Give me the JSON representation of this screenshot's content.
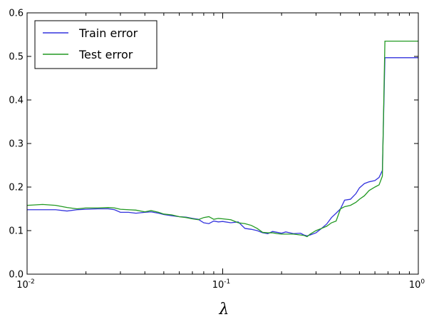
{
  "chart_data": {
    "type": "line",
    "title": "",
    "xlabel": "λ",
    "ylabel": "",
    "xscale": "log",
    "xlim": [
      0.01,
      1
    ],
    "ylim": [
      0,
      0.6
    ],
    "grid": false,
    "legend_position": "top-left",
    "x_ticks": [
      {
        "value": 0.01,
        "base": "10",
        "exp": "-2"
      },
      {
        "value": 0.1,
        "base": "10",
        "exp": "-1"
      },
      {
        "value": 1,
        "base": "10",
        "exp": "0"
      }
    ],
    "y_ticks": [
      {
        "value": 0.0,
        "label": "0.0"
      },
      {
        "value": 0.1,
        "label": "0.1"
      },
      {
        "value": 0.2,
        "label": "0.2"
      },
      {
        "value": 0.3,
        "label": "0.3"
      },
      {
        "value": 0.4,
        "label": "0.4"
      },
      {
        "value": 0.5,
        "label": "0.5"
      },
      {
        "value": 0.6,
        "label": "0.6"
      }
    ],
    "series": [
      {
        "name": "Train error",
        "color": "#3333dd",
        "points": [
          [
            0.01,
            0.148
          ],
          [
            0.012,
            0.148
          ],
          [
            0.014,
            0.148
          ],
          [
            0.016,
            0.145
          ],
          [
            0.018,
            0.148
          ],
          [
            0.02,
            0.149
          ],
          [
            0.023,
            0.15
          ],
          [
            0.026,
            0.15
          ],
          [
            0.028,
            0.148
          ],
          [
            0.03,
            0.142
          ],
          [
            0.033,
            0.142
          ],
          [
            0.036,
            0.14
          ],
          [
            0.04,
            0.142
          ],
          [
            0.043,
            0.143
          ],
          [
            0.047,
            0.14
          ],
          [
            0.05,
            0.137
          ],
          [
            0.055,
            0.134
          ],
          [
            0.06,
            0.132
          ],
          [
            0.065,
            0.131
          ],
          [
            0.07,
            0.128
          ],
          [
            0.075,
            0.126
          ],
          [
            0.08,
            0.118
          ],
          [
            0.085,
            0.116
          ],
          [
            0.09,
            0.122
          ],
          [
            0.095,
            0.12
          ],
          [
            0.1,
            0.121
          ],
          [
            0.11,
            0.118
          ],
          [
            0.12,
            0.12
          ],
          [
            0.13,
            0.105
          ],
          [
            0.14,
            0.103
          ],
          [
            0.15,
            0.1
          ],
          [
            0.16,
            0.095
          ],
          [
            0.17,
            0.093
          ],
          [
            0.18,
            0.098
          ],
          [
            0.19,
            0.096
          ],
          [
            0.2,
            0.094
          ],
          [
            0.21,
            0.097
          ],
          [
            0.22,
            0.095
          ],
          [
            0.23,
            0.093
          ],
          [
            0.25,
            0.094
          ],
          [
            0.26,
            0.09
          ],
          [
            0.27,
            0.088
          ],
          [
            0.28,
            0.09
          ],
          [
            0.3,
            0.095
          ],
          [
            0.32,
            0.105
          ],
          [
            0.34,
            0.115
          ],
          [
            0.36,
            0.13
          ],
          [
            0.38,
            0.14
          ],
          [
            0.4,
            0.15
          ],
          [
            0.42,
            0.17
          ],
          [
            0.45,
            0.172
          ],
          [
            0.48,
            0.185
          ],
          [
            0.5,
            0.198
          ],
          [
            0.53,
            0.208
          ],
          [
            0.56,
            0.212
          ],
          [
            0.6,
            0.215
          ],
          [
            0.63,
            0.222
          ],
          [
            0.655,
            0.238
          ],
          [
            0.675,
            0.497
          ],
          [
            0.7,
            0.497
          ],
          [
            0.8,
            0.497
          ],
          [
            0.9,
            0.497
          ],
          [
            1.0,
            0.497
          ]
        ]
      },
      {
        "name": "Test error",
        "color": "#229922",
        "points": [
          [
            0.01,
            0.158
          ],
          [
            0.012,
            0.16
          ],
          [
            0.014,
            0.158
          ],
          [
            0.016,
            0.153
          ],
          [
            0.018,
            0.15
          ],
          [
            0.02,
            0.152
          ],
          [
            0.023,
            0.152
          ],
          [
            0.026,
            0.153
          ],
          [
            0.028,
            0.152
          ],
          [
            0.03,
            0.149
          ],
          [
            0.033,
            0.148
          ],
          [
            0.036,
            0.147
          ],
          [
            0.04,
            0.143
          ],
          [
            0.043,
            0.146
          ],
          [
            0.047,
            0.142
          ],
          [
            0.05,
            0.138
          ],
          [
            0.055,
            0.136
          ],
          [
            0.06,
            0.132
          ],
          [
            0.065,
            0.13
          ],
          [
            0.07,
            0.127
          ],
          [
            0.075,
            0.125
          ],
          [
            0.08,
            0.13
          ],
          [
            0.085,
            0.132
          ],
          [
            0.09,
            0.126
          ],
          [
            0.095,
            0.128
          ],
          [
            0.1,
            0.127
          ],
          [
            0.11,
            0.125
          ],
          [
            0.12,
            0.118
          ],
          [
            0.13,
            0.116
          ],
          [
            0.14,
            0.112
          ],
          [
            0.15,
            0.105
          ],
          [
            0.16,
            0.096
          ],
          [
            0.17,
            0.095
          ],
          [
            0.18,
            0.095
          ],
          [
            0.19,
            0.093
          ],
          [
            0.2,
            0.092
          ],
          [
            0.21,
            0.092
          ],
          [
            0.22,
            0.092
          ],
          [
            0.23,
            0.092
          ],
          [
            0.25,
            0.09
          ],
          [
            0.26,
            0.089
          ],
          [
            0.27,
            0.086
          ],
          [
            0.28,
            0.092
          ],
          [
            0.3,
            0.1
          ],
          [
            0.32,
            0.105
          ],
          [
            0.34,
            0.11
          ],
          [
            0.36,
            0.118
          ],
          [
            0.38,
            0.122
          ],
          [
            0.4,
            0.15
          ],
          [
            0.42,
            0.155
          ],
          [
            0.45,
            0.158
          ],
          [
            0.48,
            0.165
          ],
          [
            0.5,
            0.172
          ],
          [
            0.53,
            0.18
          ],
          [
            0.56,
            0.192
          ],
          [
            0.6,
            0.2
          ],
          [
            0.63,
            0.205
          ],
          [
            0.655,
            0.225
          ],
          [
            0.675,
            0.535
          ],
          [
            0.7,
            0.535
          ],
          [
            0.8,
            0.535
          ],
          [
            0.9,
            0.535
          ],
          [
            1.0,
            0.535
          ]
        ]
      }
    ]
  }
}
